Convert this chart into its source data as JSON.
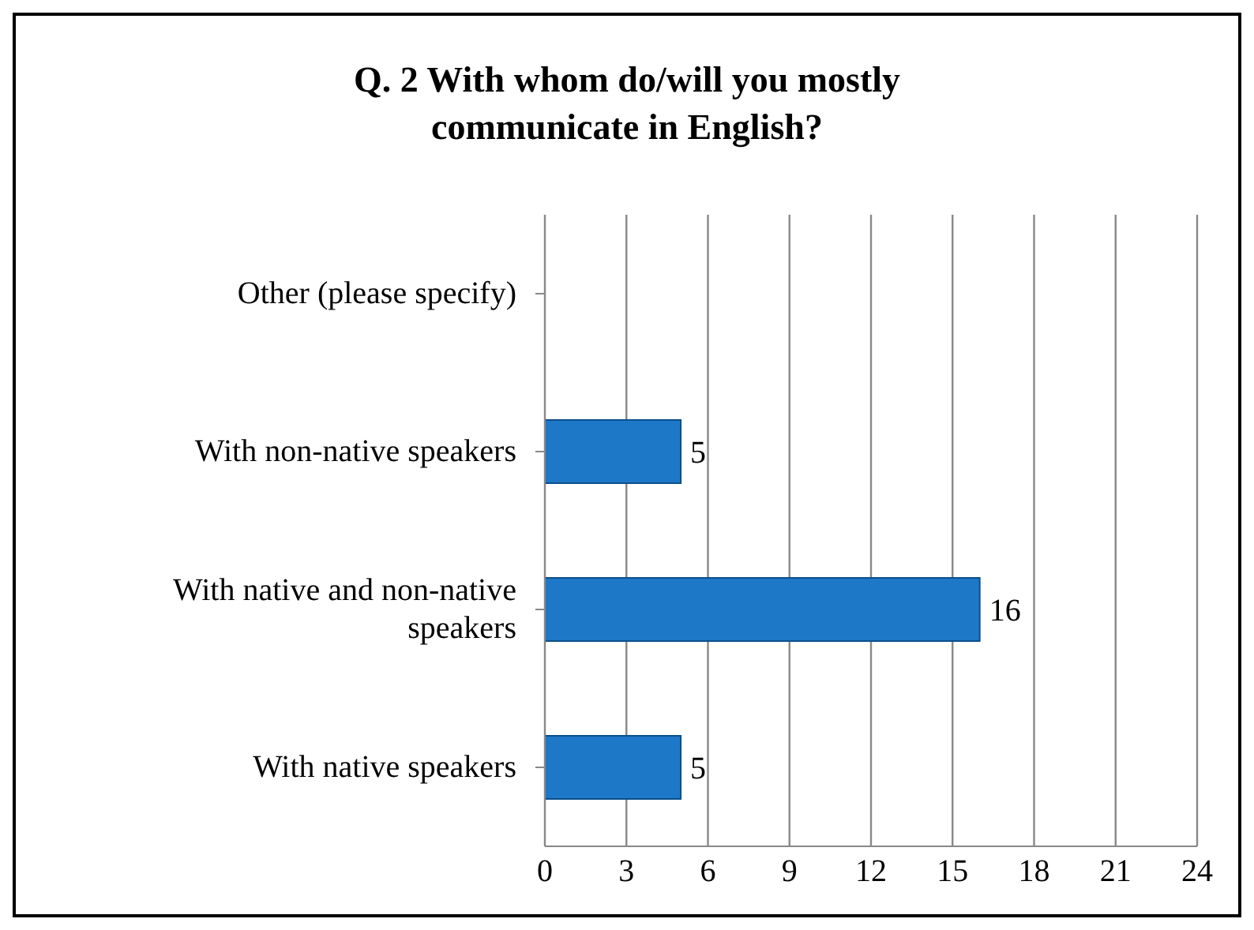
{
  "chart_data": {
    "type": "bar",
    "orientation": "horizontal",
    "title": "Q. 2 With whom do/will you mostly communicate in English?",
    "categories": [
      "Other (please specify)",
      "With non-native speakers",
      "With native and non-native speakers",
      "With native speakers"
    ],
    "values": [
      null,
      5,
      16,
      5
    ],
    "color": "#1e78c8",
    "xlim": [
      0,
      24
    ],
    "xticks": [
      0,
      3,
      6,
      9,
      12,
      15,
      18,
      21,
      24
    ],
    "grid": "x",
    "data_labels": true
  }
}
